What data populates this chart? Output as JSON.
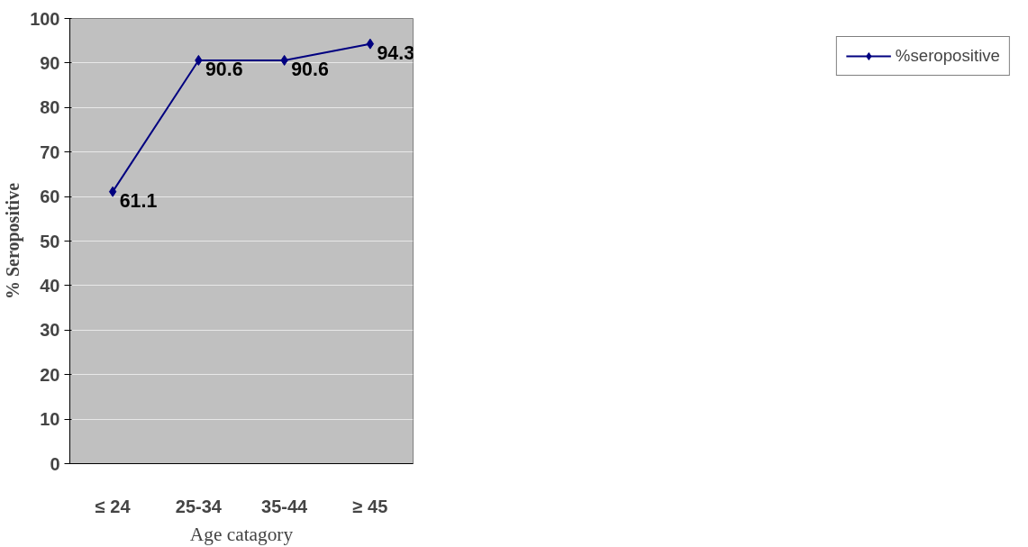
{
  "chart_data": {
    "type": "line",
    "xlabel": "Age catagory",
    "ylabel": "% Seropositive",
    "categories": [
      "≤ 24",
      "25-34",
      "35-44",
      "≥ 45"
    ],
    "series": [
      {
        "name": "%seropositive",
        "color": "#000080",
        "values": [
          61.1,
          90.6,
          90.6,
          94.3
        ]
      }
    ],
    "ylim": [
      0,
      100
    ],
    "yticks": [
      0,
      10,
      20,
      30,
      40,
      50,
      60,
      70,
      80,
      90,
      100
    ],
    "grid": "y",
    "legend": "right",
    "marker": "diamond",
    "line_style": "solid",
    "data_labels": true
  }
}
